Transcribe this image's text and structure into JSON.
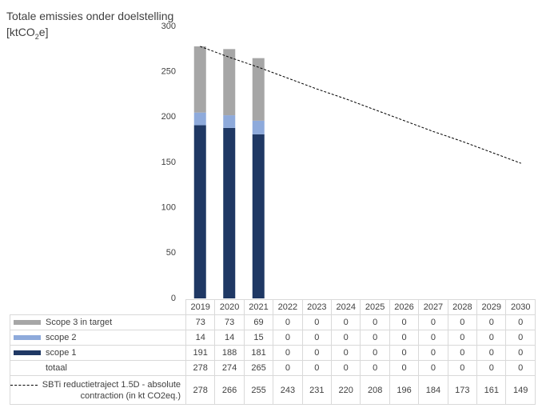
{
  "chart_data": {
    "type": "stacked_bar",
    "title": "Totale emissies onder doelstelling",
    "y_label": {
      "prefix": "[ktCO",
      "sub": "2",
      "suffix": "e]"
    },
    "categories": [
      "2019",
      "2020",
      "2021",
      "2022",
      "2023",
      "2024",
      "2025",
      "2026",
      "2027",
      "2028",
      "2029",
      "2030"
    ],
    "series": [
      {
        "name": "Scope 3 in target",
        "color": "#a6a6a6",
        "values": [
          73,
          73,
          69,
          0,
          0,
          0,
          0,
          0,
          0,
          0,
          0,
          0
        ]
      },
      {
        "name": "scope 2",
        "color": "#8eaadb",
        "values": [
          14,
          14,
          15,
          0,
          0,
          0,
          0,
          0,
          0,
          0,
          0,
          0
        ]
      },
      {
        "name": "scope 1",
        "color": "#1f3864",
        "values": [
          191,
          188,
          181,
          0,
          0,
          0,
          0,
          0,
          0,
          0,
          0,
          0
        ]
      }
    ],
    "total": {
      "name": "totaal",
      "values": [
        278,
        274,
        265,
        0,
        0,
        0,
        0,
        0,
        0,
        0,
        0,
        0
      ]
    },
    "line_series": {
      "name": "SBTi reductietraject 1.5D - absolute contraction (in kt CO2eq.)",
      "color": "#000000",
      "dashed": true,
      "values": [
        278,
        266,
        255,
        243,
        231,
        220,
        208,
        196,
        184,
        173,
        161,
        149
      ]
    },
    "ylim": [
      0,
      300
    ],
    "yticks": [
      0,
      50,
      100,
      150,
      200,
      250,
      300
    ],
    "grid": false
  }
}
